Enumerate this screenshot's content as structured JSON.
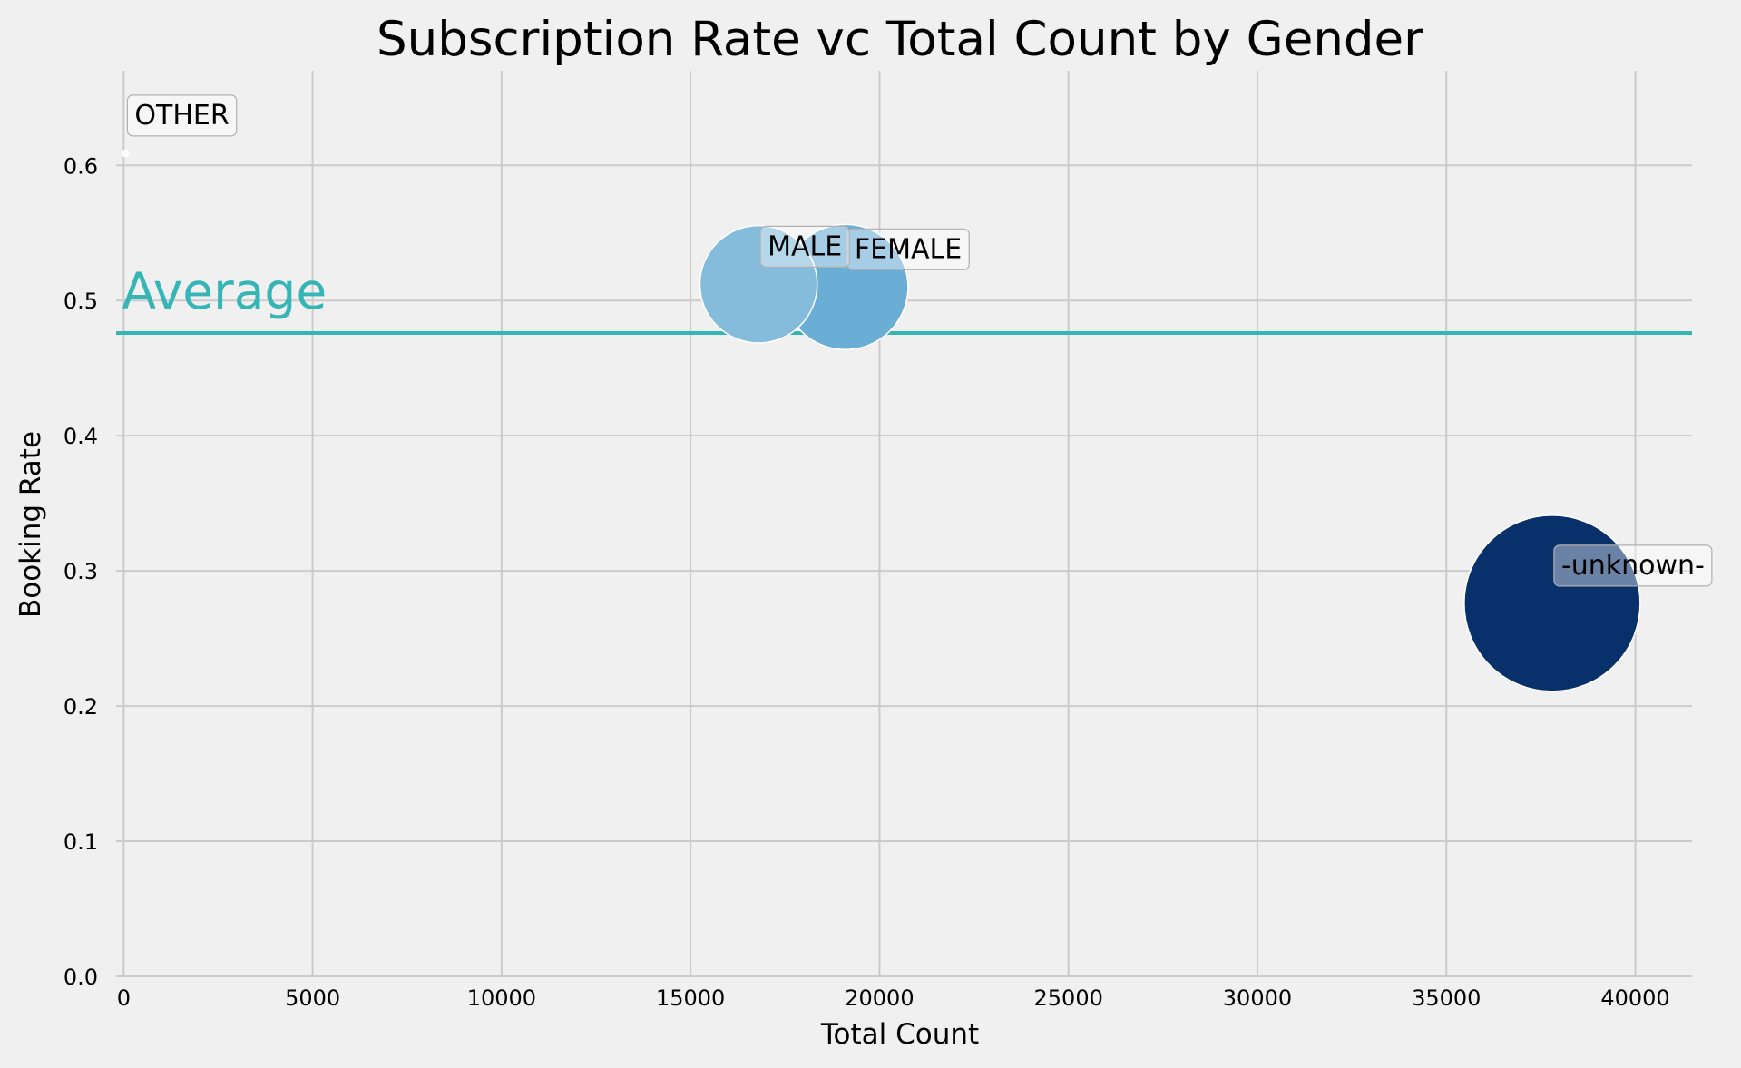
{
  "chart_data": {
    "type": "scatter",
    "title": "Subscription Rate vc Total Count by Gender",
    "xlabel": "Total Count",
    "ylabel": "Booking Rate",
    "xlim": [
      -200,
      41500
    ],
    "ylim": [
      0,
      0.67
    ],
    "xticks": [
      0,
      5000,
      10000,
      15000,
      20000,
      25000,
      30000,
      35000,
      40000
    ],
    "yticks": [
      0.0,
      0.1,
      0.2,
      0.3,
      0.4,
      0.5,
      0.6
    ],
    "grid": true,
    "average": {
      "label": "Average",
      "value": 0.476,
      "color": "#35b5b5"
    },
    "points": [
      {
        "name": "OTHER",
        "x": 50,
        "y": 0.609,
        "color": "#f7fbff"
      },
      {
        "name": "-unknown-",
        "x": 37800,
        "y": 0.276,
        "color": "#08306b"
      },
      {
        "name": "FEMALE",
        "x": 19100,
        "y": 0.51,
        "color": "#6aadd5"
      },
      {
        "name": "MALE",
        "x": 16800,
        "y": 0.512,
        "color": "#85bcdc"
      }
    ]
  }
}
